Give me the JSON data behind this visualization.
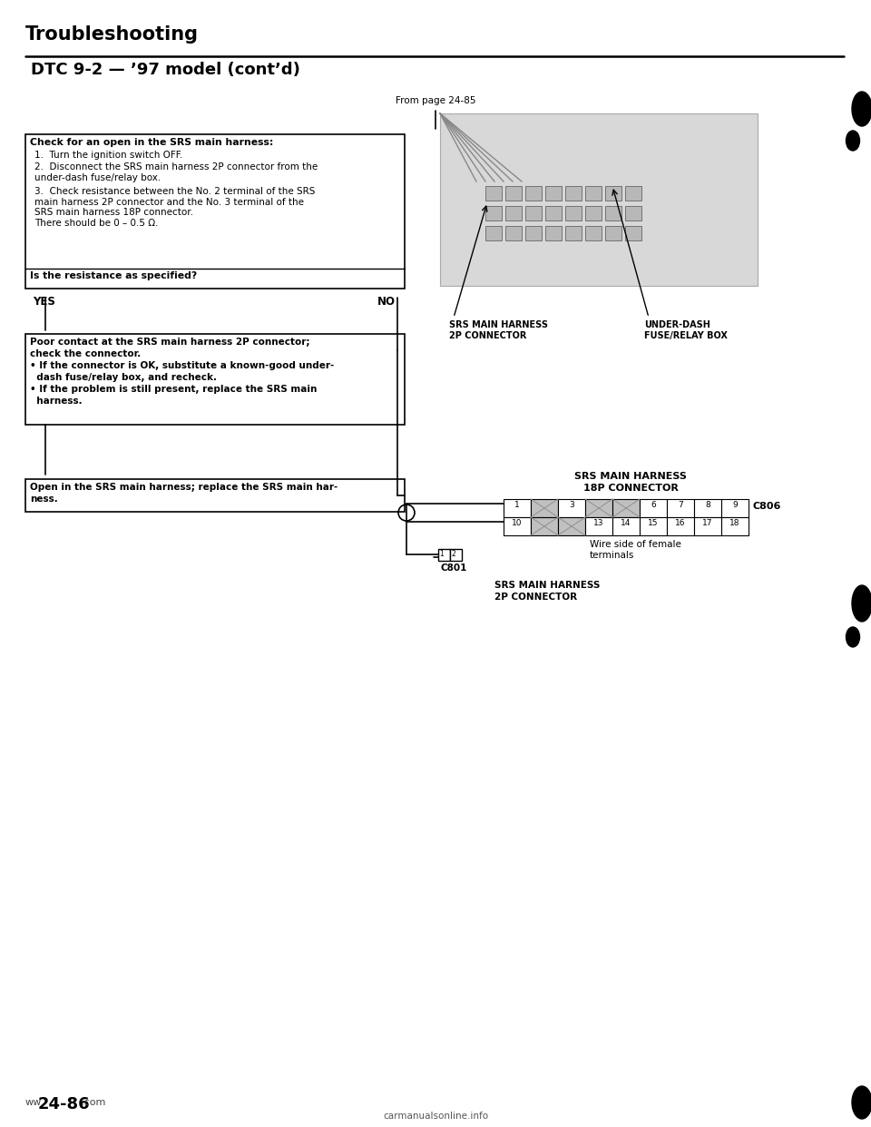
{
  "title": "Troubleshooting",
  "subtitle": "DTC 9-2 — ’97 model (cont’d)",
  "from_page": "From page 24-85",
  "bg_color": "#ffffff",
  "box1_title": "Check for an open in the SRS main harness:",
  "box1_item1": "Turn the ignition switch OFF.",
  "box1_item2": "Disconnect the SRS main harness 2P connector from the\nunder-dash fuse/relay box.",
  "box1_item3": "Check resistance between the No. 2 terminal of the SRS\nmain harness 2P connector and the No. 3 terminal of the\nSRS main harness 18P connector.\nThere should be 0 – 0.5 Ω.",
  "box1_question": "Is the resistance as specified?",
  "yes_label": "YES",
  "no_label": "NO",
  "box2_line1": "Poor contact at the SRS main harness 2P connector;",
  "box2_line2": "check the connector.",
  "box2_line3": "• If the connector is OK, substitute a known-good under-",
  "box2_line4": "  dash fuse/relay box, and recheck.",
  "box2_line5": "• If the problem is still present, replace the SRS main",
  "box2_line6": "  harness.",
  "box3_line1": "Open in the SRS main harness; replace the SRS main har-",
  "box3_line2": "ness.",
  "img_label_left1": "SRS MAIN HARNESS",
  "img_label_left2": "2P CONNECTOR",
  "img_label_right1": "UNDER-DASH",
  "img_label_right2": "FUSE/RELAY BOX",
  "conn18p_title1": "SRS MAIN HARNESS",
  "conn18p_title2": "18P CONNECTOR",
  "conn18p_label": "C806",
  "conn2p_label": "C801",
  "srs2p_title1": "SRS MAIN HARNESS",
  "srs2p_title2": "2P CONNECTOR",
  "wire_label": "Wire side of female\nterminals",
  "page_num": "24-86",
  "footer_site": "carmanualsonline.info"
}
